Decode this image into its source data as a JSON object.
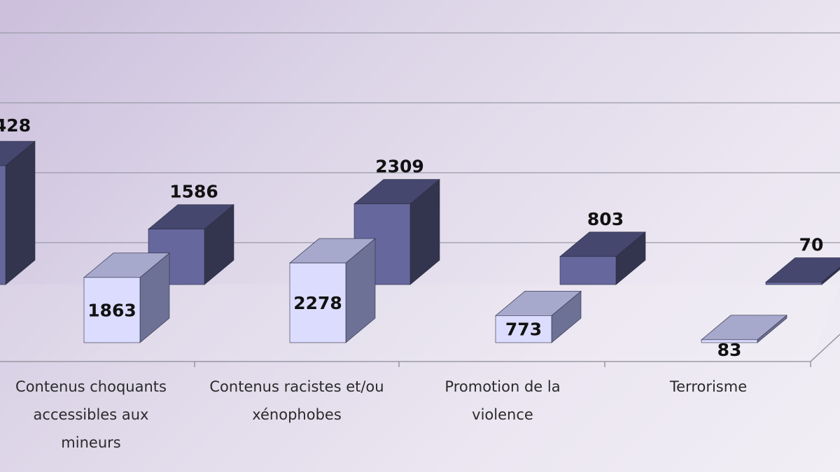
{
  "chart_data": {
    "type": "bar",
    "style": "3d-clustered",
    "categories": [
      [
        "Contenus choquants",
        "accessibles aux",
        "mineurs"
      ],
      [
        "Contenus racistes et/ou",
        "xénophobes"
      ],
      [
        "Promotion de la",
        "violence"
      ],
      [
        "Terrorisme"
      ]
    ],
    "partial_first_category": {
      "back_value_label": "428"
    },
    "series": [
      {
        "values": [
          1863,
          2278,
          773,
          83
        ],
        "color_front": "#dcdcff",
        "color_top": "#a6a8cc",
        "color_side": "#6e7196"
      },
      {
        "values": [
          1586,
          2309,
          803,
          70
        ],
        "color_front": "#66689d",
        "color_top": "#45476e",
        "color_side": "#33354f"
      }
    ],
    "value_labels": {
      "front": [
        "1863",
        "2278",
        "773",
        "83"
      ],
      "back": [
        "1586",
        "2309",
        "803",
        "70"
      ]
    },
    "grid": true,
    "ylim": [
      0,
      4000
    ]
  }
}
